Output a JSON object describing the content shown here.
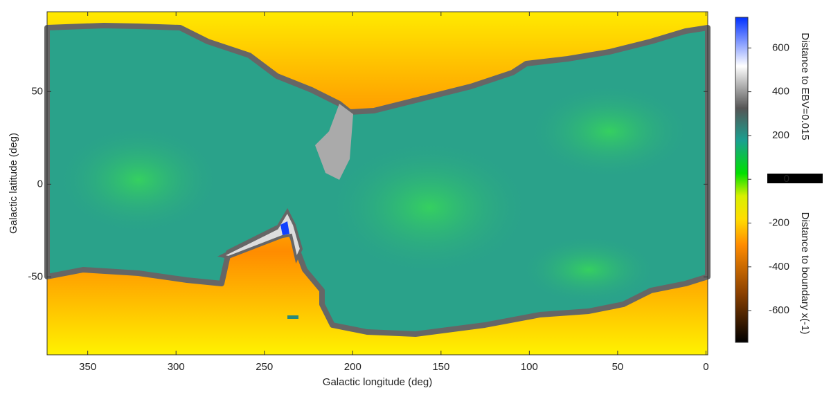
{
  "chart_data": {
    "type": "heatmap",
    "xlabel": "Galactic longitude (deg)",
    "ylabel": "Galactic latitude (deg)",
    "xlim": [
      373,
      -1
    ],
    "xticks": [
      350,
      300,
      250,
      200,
      150,
      100,
      50,
      0
    ],
    "ylim": [
      -92,
      93
    ],
    "yticks": [
      -50,
      0,
      50
    ],
    "colorbar": {
      "lim": [
        -745,
        740
      ],
      "ticks": [
        -600,
        -400,
        -200,
        0,
        200,
        400,
        600
      ],
      "label_top": "Distance to EBV=0.015",
      "label_bottom": "Distance to boundary x(-1)"
    }
  }
}
